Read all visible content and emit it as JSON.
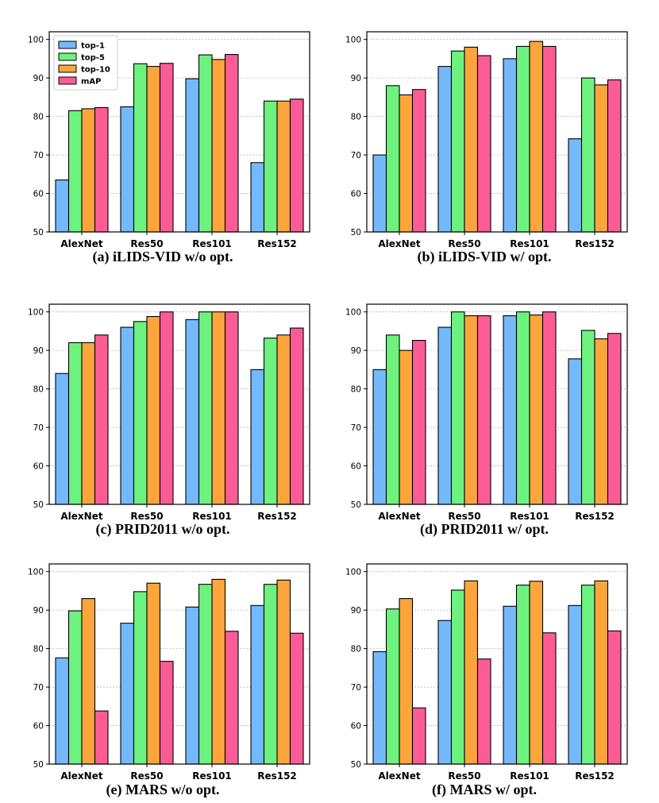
{
  "legend": [
    "top-1",
    "top-5",
    "top-10",
    "mAP"
  ],
  "colors": {
    "top-1": "#74b9fb",
    "top-5": "#6ef27f",
    "top-10": "#fba53c",
    "mAP": "#fb5c96"
  },
  "chart_data": [
    {
      "type": "bar",
      "title": "(a)  iLIDS-VID w/o opt.",
      "categories": [
        "AlexNet",
        "Res50",
        "Res101",
        "Res152"
      ],
      "ylim": [
        50,
        102
      ],
      "yticks": [
        50,
        60,
        70,
        80,
        90,
        100
      ],
      "grid": true,
      "legend_position": "top-left",
      "series": [
        {
          "name": "top-1",
          "values": [
            63.5,
            82.5,
            89.8,
            68.0
          ]
        },
        {
          "name": "top-5",
          "values": [
            81.5,
            93.7,
            96.0,
            84.0
          ]
        },
        {
          "name": "top-10",
          "values": [
            82.0,
            93.0,
            94.8,
            84.0
          ]
        },
        {
          "name": "mAP",
          "values": [
            82.3,
            93.8,
            96.1,
            84.5
          ]
        }
      ]
    },
    {
      "type": "bar",
      "title": "(b)  iLIDS-VID w/ opt.",
      "categories": [
        "AlexNet",
        "Res50",
        "Res101",
        "Res152"
      ],
      "ylim": [
        50,
        102
      ],
      "yticks": [
        50,
        60,
        70,
        80,
        90,
        100
      ],
      "grid": true,
      "series": [
        {
          "name": "top-1",
          "values": [
            70.0,
            93.0,
            95.0,
            74.2
          ]
        },
        {
          "name": "top-5",
          "values": [
            88.0,
            97.0,
            98.2,
            90.0
          ]
        },
        {
          "name": "top-10",
          "values": [
            85.6,
            98.0,
            99.5,
            88.2
          ]
        },
        {
          "name": "mAP",
          "values": [
            87.0,
            95.8,
            98.2,
            89.5
          ]
        }
      ]
    },
    {
      "type": "bar",
      "title": "(c)  PRID2011 w/o opt.",
      "categories": [
        "AlexNet",
        "Res50",
        "Res101",
        "Res152"
      ],
      "ylim": [
        50,
        102
      ],
      "yticks": [
        50,
        60,
        70,
        80,
        90,
        100
      ],
      "grid": true,
      "series": [
        {
          "name": "top-1",
          "values": [
            84.0,
            96.0,
            98.0,
            85.0
          ]
        },
        {
          "name": "top-5",
          "values": [
            92.0,
            97.5,
            100.0,
            93.2
          ]
        },
        {
          "name": "top-10",
          "values": [
            92.0,
            98.8,
            100.0,
            94.0
          ]
        },
        {
          "name": "mAP",
          "values": [
            94.0,
            100.0,
            100.0,
            95.8
          ]
        }
      ]
    },
    {
      "type": "bar",
      "title": "(d)  PRID2011 w/ opt.",
      "categories": [
        "AlexNet",
        "Res50",
        "Res101",
        "Res152"
      ],
      "ylim": [
        50,
        102
      ],
      "yticks": [
        50,
        60,
        70,
        80,
        90,
        100
      ],
      "grid": true,
      "series": [
        {
          "name": "top-1",
          "values": [
            85.0,
            96.0,
            99.0,
            87.8
          ]
        },
        {
          "name": "top-5",
          "values": [
            94.0,
            100.0,
            100.0,
            95.2
          ]
        },
        {
          "name": "top-10",
          "values": [
            90.0,
            99.0,
            99.2,
            93.0
          ]
        },
        {
          "name": "mAP",
          "values": [
            92.6,
            99.0,
            100.0,
            94.4
          ]
        }
      ]
    },
    {
      "type": "bar",
      "title": "(e)  MARS w/o opt.",
      "categories": [
        "AlexNet",
        "Res50",
        "Res101",
        "Res152"
      ],
      "ylim": [
        50,
        102
      ],
      "yticks": [
        50,
        60,
        70,
        80,
        90,
        100
      ],
      "grid": true,
      "series": [
        {
          "name": "top-1",
          "values": [
            77.6,
            86.6,
            90.8,
            91.2
          ]
        },
        {
          "name": "top-5",
          "values": [
            89.8,
            94.8,
            96.7,
            96.7
          ]
        },
        {
          "name": "top-10",
          "values": [
            93.0,
            97.0,
            98.0,
            97.8
          ]
        },
        {
          "name": "mAP",
          "values": [
            63.8,
            76.7,
            84.5,
            84.0
          ]
        }
      ]
    },
    {
      "type": "bar",
      "title": "(f)  MARS w/ opt.",
      "categories": [
        "AlexNet",
        "Res50",
        "Res101",
        "Res152"
      ],
      "ylim": [
        50,
        102
      ],
      "yticks": [
        50,
        60,
        70,
        80,
        90,
        100
      ],
      "grid": true,
      "series": [
        {
          "name": "top-1",
          "values": [
            79.2,
            87.3,
            91.0,
            91.2
          ]
        },
        {
          "name": "top-5",
          "values": [
            90.3,
            95.2,
            96.5,
            96.5
          ]
        },
        {
          "name": "top-10",
          "values": [
            93.0,
            97.6,
            97.5,
            97.6
          ]
        },
        {
          "name": "mAP",
          "values": [
            64.6,
            77.3,
            84.1,
            84.6
          ]
        }
      ]
    }
  ]
}
